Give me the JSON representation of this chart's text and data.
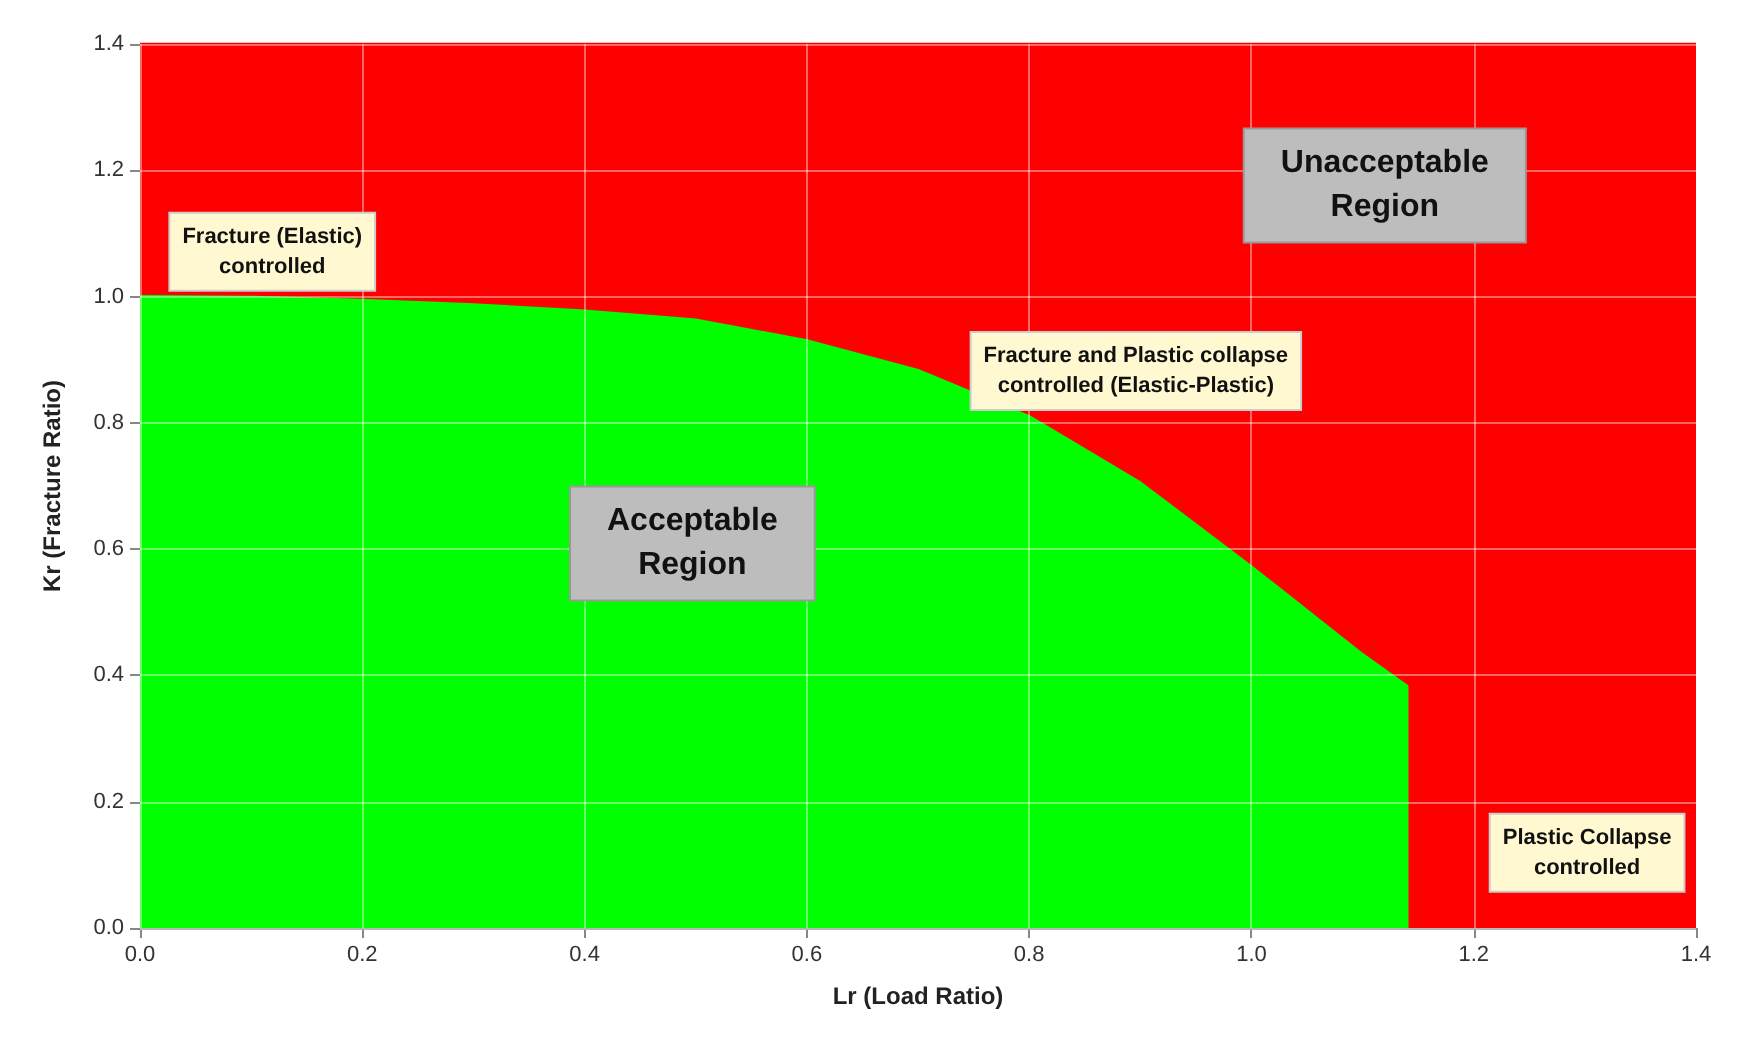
{
  "chart_data": {
    "type": "area",
    "xlabel": "Lr (Load Ratio)",
    "ylabel": "Kr (Fracture Ratio)",
    "x": [
      0,
      0.1,
      0.2,
      0.3,
      0.4,
      0.5,
      0.6,
      0.7,
      0.8,
      0.9,
      1.0,
      1.1,
      1.14,
      1.14
    ],
    "series": [
      {
        "color": "#ff0000",
        "x": [
          0,
          1.4
        ],
        "values": [
          1.4,
          1.4
        ]
      },
      {
        "color": "#00ff00",
        "values": [
          1.0,
          0.999,
          0.994,
          0.987,
          0.977,
          0.963,
          0.93,
          0.883,
          0.81,
          0.705,
          0.572,
          0.433,
          0.383,
          0
        ]
      }
    ],
    "xlim": [
      0,
      1.4
    ],
    "ylim": [
      0,
      1.4
    ],
    "xticks": [
      {
        "value": 0,
        "label": "0.0"
      },
      {
        "value": 0.2,
        "label": "0.2"
      },
      {
        "value": 0.4,
        "label": "0.4"
      },
      {
        "value": 0.6,
        "label": "0.6"
      },
      {
        "value": 0.8,
        "label": "0.8"
      },
      {
        "value": 1,
        "label": "1.0"
      },
      {
        "value": 1.2,
        "label": "1.2"
      },
      {
        "value": 1.4,
        "label": "1.4"
      }
    ],
    "yticks": [
      {
        "value": 0,
        "label": "0.0"
      },
      {
        "value": 0.2,
        "label": "0.2"
      },
      {
        "value": 0.4,
        "label": "0.4"
      },
      {
        "value": 0.6,
        "label": "0.6"
      },
      {
        "value": 0.8,
        "label": "0.8"
      },
      {
        "value": 1,
        "label": "1.0"
      },
      {
        "value": 1.2,
        "label": "1.2"
      },
      {
        "value": 1.4,
        "label": "1.4"
      }
    ],
    "grid": true,
    "marker": "none",
    "line_style": "solid",
    "annotations": [
      "Unacceptable\nRegion",
      "Fracture (Elastic)\ncontrolled",
      "Fracture and Plastic collapse\ncontrolled (Elastic-Plastic)",
      "Acceptable\nRegion",
      "Plastic Collapse\ncontrolled"
    ]
  }
}
